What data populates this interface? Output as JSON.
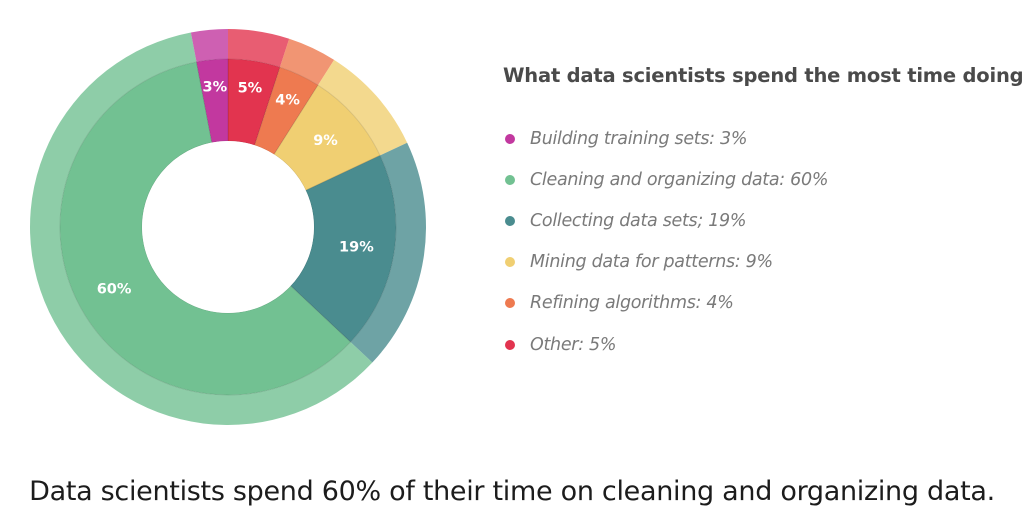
{
  "chart_data": {
    "type": "pie",
    "title": "What data scientists spend the most time doing",
    "categories": [
      "Building training sets",
      "Cleaning and organizing data",
      "Collecting data sets",
      "Mining data for patterns",
      "Refining algorithms",
      "Other"
    ],
    "values": [
      3,
      60,
      19,
      9,
      4,
      5
    ],
    "value_labels": [
      "3%",
      "60%",
      "19%",
      "9%",
      "4%",
      "5%"
    ],
    "legend_labels": [
      "Building training sets: 3%",
      "Cleaning and organizing data: 60%",
      "Collecting data sets; 19%",
      "Mining data for patterns: 9%",
      "Refining algorithms: 4%",
      "Other: 5%"
    ],
    "slice_order_clockwise_from_top": [
      5,
      4,
      3,
      2,
      1,
      0
    ],
    "colors": [
      "#c2389f",
      "#72c192",
      "#4a8c8f",
      "#f0cf72",
      "#ee7a50",
      "#e2344f"
    ],
    "legend_position": "right",
    "style": "donut"
  },
  "caption": "Data scientists spend 60% of their time on cleaning and organizing data."
}
